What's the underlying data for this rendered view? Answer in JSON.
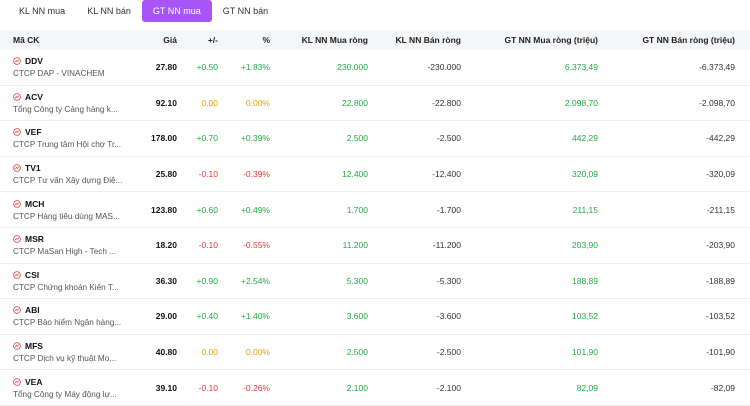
{
  "tabs": [
    {
      "label": "KL NN mua",
      "active": false
    },
    {
      "label": "KL NN bán",
      "active": false
    },
    {
      "label": "GT NN mua",
      "active": true
    },
    {
      "label": "GT NN bán",
      "active": false
    }
  ],
  "headers": {
    "code": "Mã CK",
    "price": "Giá",
    "change": "+/-",
    "pct": "%",
    "kl_buy": "KL NN Mua ròng",
    "kl_sell": "KL NN Bán ròng",
    "gt_buy": "GT NN Mua ròng (triệu)",
    "gt_sell": "GT NN Bán ròng (triệu)"
  },
  "colors": {
    "accent": "#a855f7",
    "up": "#22a844",
    "down": "#e23b3b",
    "ref": "#e2a400"
  },
  "rows": [
    {
      "code": "DDV",
      "name": "CTCP DAP - VINACHEM",
      "price": "27.80",
      "change": "+0.50",
      "pct": "+1.83%",
      "trend": "up",
      "kl_buy": "230.000",
      "kl_sell": "-230.000",
      "gt_buy": "6.373,49",
      "gt_sell": "-6.373,49"
    },
    {
      "code": "ACV",
      "name": "Tổng Công ty Cảng hàng k...",
      "price": "92.10",
      "change": "0.00",
      "pct": "0.00%",
      "trend": "ref",
      "kl_buy": "22.800",
      "kl_sell": "-22.800",
      "gt_buy": "2.098,70",
      "gt_sell": "-2.098,70"
    },
    {
      "code": "VEF",
      "name": "CTCP Trung tâm Hội chợ Tr...",
      "price": "178.00",
      "change": "+0.70",
      "pct": "+0.39%",
      "trend": "up",
      "kl_buy": "2.500",
      "kl_sell": "-2.500",
      "gt_buy": "442,29",
      "gt_sell": "-442,29"
    },
    {
      "code": "TV1",
      "name": "CTCP Tư vấn Xây dựng Điệ...",
      "price": "25.80",
      "change": "-0.10",
      "pct": "-0.39%",
      "trend": "down",
      "kl_buy": "12.400",
      "kl_sell": "-12.400",
      "gt_buy": "320,09",
      "gt_sell": "-320,09"
    },
    {
      "code": "MCH",
      "name": "CTCP Hàng tiêu dùng MAS...",
      "price": "123.80",
      "change": "+0.60",
      "pct": "+0.49%",
      "trend": "up",
      "kl_buy": "1.700",
      "kl_sell": "-1.700",
      "gt_buy": "211,15",
      "gt_sell": "-211,15"
    },
    {
      "code": "MSR",
      "name": "CTCP MaSan High - Tech ...",
      "price": "18.20",
      "change": "-0.10",
      "pct": "-0.55%",
      "trend": "down",
      "kl_buy": "11.200",
      "kl_sell": "-11.200",
      "gt_buy": "203,90",
      "gt_sell": "-203,90"
    },
    {
      "code": "CSI",
      "name": "CTCP Chứng khoán Kiến T...",
      "price": "36.30",
      "change": "+0.90",
      "pct": "+2.54%",
      "trend": "up",
      "kl_buy": "5.300",
      "kl_sell": "-5.300",
      "gt_buy": "188,89",
      "gt_sell": "-188,89"
    },
    {
      "code": "ABI",
      "name": "CTCP Bảo hiểm Ngân hàng...",
      "price": "29.00",
      "change": "+0.40",
      "pct": "+1.40%",
      "trend": "up",
      "kl_buy": "3.600",
      "kl_sell": "-3.600",
      "gt_buy": "103,52",
      "gt_sell": "-103,52"
    },
    {
      "code": "MFS",
      "name": "CTCP Dịch vụ kỹ thuật Mo...",
      "price": "40.80",
      "change": "0.00",
      "pct": "0.00%",
      "trend": "ref",
      "kl_buy": "2.500",
      "kl_sell": "-2.500",
      "gt_buy": "101,90",
      "gt_sell": "-101,90"
    },
    {
      "code": "VEA",
      "name": "Tổng Công ty Máy động lự...",
      "price": "39.10",
      "change": "-0.10",
      "pct": "-0.26%",
      "trend": "down",
      "kl_buy": "2.100",
      "kl_sell": "-2.100",
      "gt_buy": "82,09",
      "gt_sell": "-82,09"
    }
  ]
}
